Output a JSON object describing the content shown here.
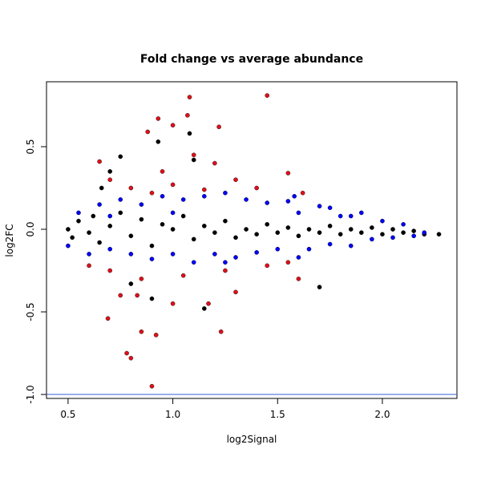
{
  "chart_data": {
    "type": "scatter",
    "title": "Fold change vs average abundance",
    "x_label": "log2Signal",
    "y_label": "log2FC",
    "xlim": [
      0.397,
      2.356
    ],
    "ylim": [
      -1.024,
      0.893
    ],
    "xticks": [
      0.5,
      {
        "value": 1,
        "label": "1.0"
      },
      1.5,
      {
        "value": 2,
        "label": "2.0"
      }
    ],
    "yticks": [
      {
        "value": -1,
        "label": "-1.0"
      },
      -0.5,
      {
        "value": 0,
        "label": "0.0"
      },
      0.5
    ],
    "hlines": [
      {
        "value": -1,
        "color": "#3b5bdb"
      }
    ],
    "series": [
      {
        "name": "black",
        "color": "#000000",
        "x": [
          0.5,
          0.52,
          0.55,
          0.6,
          0.62,
          0.65,
          0.7,
          0.75,
          0.8,
          0.85,
          0.9,
          0.95,
          1.0,
          1.05,
          1.1,
          1.15,
          1.2,
          1.25,
          1.3,
          1.35,
          1.4,
          1.45,
          1.5,
          1.55,
          1.6,
          1.65,
          1.7,
          1.75,
          1.8,
          1.85,
          1.9,
          1.95,
          2.0,
          2.05,
          2.1,
          2.15,
          2.2,
          2.27,
          0.93,
          1.08,
          0.75,
          0.7,
          0.66,
          1.7,
          1.15,
          0.9,
          0.8,
          1.1
        ],
        "values": [
          0.0,
          -0.05,
          0.05,
          -0.02,
          0.08,
          -0.08,
          0.02,
          0.1,
          -0.04,
          0.06,
          -0.1,
          0.03,
          0.0,
          0.08,
          -0.06,
          0.02,
          -0.02,
          0.05,
          -0.05,
          0.0,
          -0.03,
          0.03,
          -0.02,
          0.01,
          -0.04,
          0.0,
          -0.02,
          0.02,
          -0.03,
          0.0,
          -0.02,
          0.01,
          -0.03,
          0.0,
          -0.02,
          -0.01,
          -0.03,
          -0.03,
          0.53,
          0.58,
          0.44,
          0.35,
          0.25,
          -0.35,
          -0.48,
          -0.42,
          -0.33,
          0.42
        ]
      },
      {
        "name": "blue",
        "color": "#0000ff",
        "x": [
          0.5,
          0.55,
          0.6,
          0.65,
          0.7,
          0.75,
          0.8,
          0.85,
          0.9,
          0.95,
          1.0,
          1.05,
          1.1,
          1.15,
          1.2,
          1.25,
          1.3,
          1.35,
          1.4,
          1.45,
          1.5,
          1.55,
          1.6,
          1.65,
          1.7,
          1.75,
          1.8,
          1.85,
          1.9,
          1.95,
          2.0,
          2.05,
          2.1,
          2.15,
          2.2,
          1.58,
          1.75,
          1.85,
          1.25,
          1.0,
          0.7,
          1.6
        ],
        "values": [
          -0.1,
          0.1,
          -0.15,
          0.15,
          -0.12,
          0.18,
          -0.15,
          0.15,
          -0.18,
          0.2,
          -0.15,
          0.18,
          -0.2,
          0.2,
          -0.15,
          0.22,
          -0.17,
          0.18,
          -0.14,
          0.16,
          -0.12,
          0.17,
          0.1,
          -0.12,
          0.14,
          -0.09,
          0.08,
          -0.1,
          0.1,
          -0.06,
          0.05,
          -0.05,
          0.03,
          -0.04,
          -0.02,
          0.2,
          0.13,
          0.08,
          -0.2,
          0.1,
          0.08,
          -0.17
        ]
      },
      {
        "name": "red",
        "color": "#e0101a",
        "x": [
          1.08,
          1.45,
          0.93,
          1.07,
          1.22,
          0.88,
          1.0,
          0.78,
          0.8,
          0.9,
          0.85,
          0.92,
          1.23,
          0.69,
          0.75,
          0.83,
          1.0,
          1.17,
          1.3,
          1.6,
          0.65,
          0.7,
          0.8,
          0.95,
          1.1,
          1.2,
          1.3,
          1.4,
          1.55,
          1.62,
          0.6,
          0.7,
          0.85,
          1.05,
          1.25,
          1.45,
          1.55,
          0.9,
          1.0,
          1.15
        ],
        "values": [
          0.8,
          0.81,
          0.67,
          0.69,
          0.62,
          0.59,
          0.63,
          -0.75,
          -0.78,
          -0.95,
          -0.62,
          -0.64,
          -0.62,
          -0.54,
          -0.4,
          -0.4,
          -0.45,
          -0.45,
          -0.38,
          -0.3,
          0.41,
          0.3,
          0.25,
          0.35,
          0.45,
          0.4,
          0.3,
          0.25,
          0.34,
          0.22,
          -0.22,
          -0.25,
          -0.3,
          -0.28,
          -0.25,
          -0.22,
          -0.2,
          0.22,
          0.27,
          0.24
        ]
      }
    ]
  }
}
